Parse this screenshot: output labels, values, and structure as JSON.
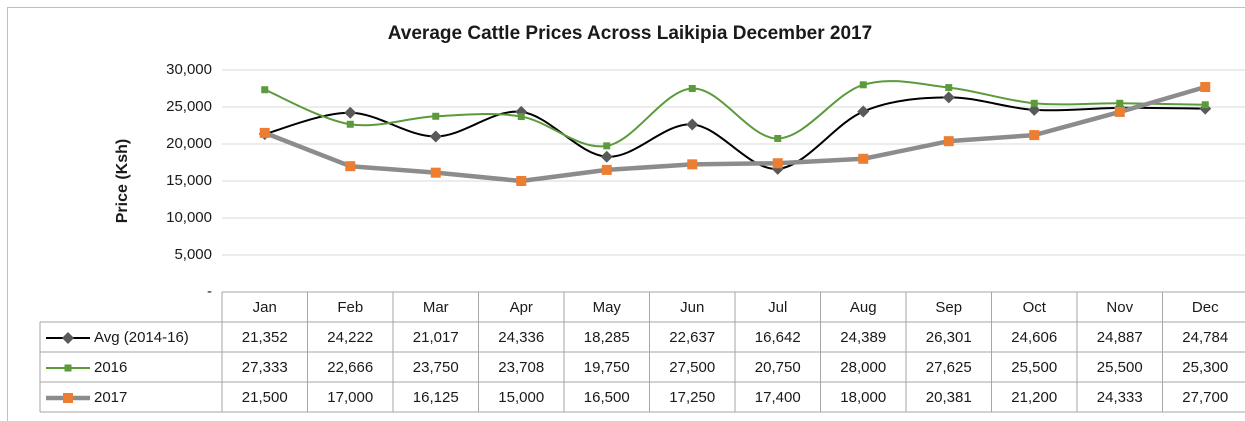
{
  "chart_data": {
    "type": "line",
    "title": "Average Cattle Prices Across Laikipia December 2017",
    "y_label": "Price (Ksh)",
    "categories": [
      "Jan",
      "Feb",
      "Mar",
      "Apr",
      "May",
      "Jun",
      "Jul",
      "Aug",
      "Sep",
      "Oct",
      "Nov",
      "Dec"
    ],
    "ylim": [
      0,
      30000
    ],
    "yticks": [
      {
        "value": 0,
        "label": "-"
      },
      {
        "value": 5000,
        "label": "5,000"
      },
      {
        "value": 10000,
        "label": "10,000"
      },
      {
        "value": 15000,
        "label": "15,000"
      },
      {
        "value": 20000,
        "label": "20,000"
      },
      {
        "value": 25000,
        "label": "25,000"
      },
      {
        "value": 30000,
        "label": "30,000"
      }
    ],
    "grid": true,
    "series": [
      {
        "name": "Avg (2014-16)",
        "color": "#000000",
        "marker": "diamond",
        "marker_color": "#595959",
        "smooth": true,
        "values": [
          21352,
          24222,
          21017,
          24336,
          18285,
          22637,
          16642,
          24389,
          26301,
          24606,
          24887,
          24784
        ],
        "value_labels": [
          "21,352",
          "24,222",
          "21,017",
          "24,336",
          "18,285",
          "22,637",
          "16,642",
          "24,389",
          "26,301",
          "24,606",
          "24,887",
          "24,784"
        ]
      },
      {
        "name": "2016",
        "color": "#5b9b3b",
        "marker": "square",
        "marker_color": "#5b9b3b",
        "smooth": true,
        "values": [
          27333,
          22666,
          23750,
          23708,
          19750,
          27500,
          20750,
          28000,
          27625,
          25500,
          25500,
          25300
        ],
        "value_labels": [
          "27,333",
          "22,666",
          "23,750",
          "23,708",
          "19,750",
          "27,500",
          "20,750",
          "28,000",
          "27,625",
          "25,500",
          "25,500",
          "25,300"
        ]
      },
      {
        "name": "2017",
        "color": "#8c8c8c",
        "marker": "square",
        "marker_color": "#ed7d31",
        "smooth": false,
        "values": [
          21500,
          17000,
          16125,
          15000,
          16500,
          17250,
          17400,
          18000,
          20381,
          21200,
          24333,
          27700
        ],
        "value_labels": [
          "21,500",
          "17,000",
          "16,125",
          "15,000",
          "16,500",
          "17,250",
          "17,400",
          "18,000",
          "20,381",
          "21,200",
          "24,333",
          "27,700"
        ]
      }
    ]
  }
}
